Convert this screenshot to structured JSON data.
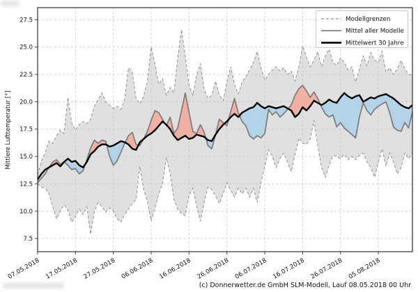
{
  "footer": {
    "copyright": "(c) Donnerwetter.de GmbH SLM-Modell, Lauf 08.05.2018 00 Uhr"
  },
  "chart_data": {
    "type": "line",
    "title": "",
    "xlabel": "",
    "ylabel": "Mittlere Lufttemperatur [°]",
    "grid": true,
    "xlim_days": [
      0,
      99
    ],
    "ylim": [
      6.3,
      28.6
    ],
    "y_ticks": [
      7.5,
      10.0,
      12.5,
      15.0,
      17.5,
      20.0,
      22.5,
      25.0,
      27.5
    ],
    "y_tick_labels": [
      "7.5",
      "10.0",
      "12.5",
      "15.0",
      "17.5",
      "20.0",
      "22.5",
      "25.0",
      "27.5"
    ],
    "x_tick_days": [
      0,
      10,
      20,
      30,
      40,
      50,
      60,
      70,
      80,
      90
    ],
    "x_tick_labels": [
      "07.05.2018",
      "17.05.2018",
      "27.05.2018",
      "06.06.2018",
      "16.06.2018",
      "26.06.2018",
      "06.07.2018",
      "16.07.2018",
      "26.07.2018",
      "05.08.2018"
    ],
    "x_start_day": 0,
    "x_day_step": 1,
    "colors": {
      "band": "#c4c4c4",
      "bound_line": "#8e8e8e",
      "model_line": "#7a7a7a",
      "climate_line": "#000000",
      "warmer_fill": "#f1b0a4",
      "colder_fill": "#b3d3e8"
    },
    "legend": {
      "position": "top-right",
      "entries": [
        {
          "label": "Modellgrenzen",
          "style": "dashed"
        },
        {
          "label": "Mittel aller Modelle",
          "style": "solid"
        },
        {
          "label": "Mittelwert 30 Jahre",
          "style": "bold"
        }
      ]
    },
    "series": [
      {
        "role": "upper_bound",
        "name": "Modellgrenzen (oberes Modell)",
        "style": "dashed",
        "values": [
          13.3,
          14.6,
          15.3,
          16.4,
          16.2,
          16.9,
          17.4,
          17.1,
          20.4,
          18.1,
          17.4,
          17.9,
          18.2,
          18.0,
          18.4,
          19.6,
          20.2,
          20.8,
          20.0,
          19.7,
          19.4,
          19.6,
          19.3,
          20.2,
          23.1,
          22.7,
          20.3,
          19.8,
          20.5,
          21.9,
          25.0,
          23.4,
          21.6,
          22.1,
          20.6,
          21.3,
          20.8,
          24.0,
          26.6,
          24.2,
          21.5,
          20.6,
          22.4,
          23.5,
          21.1,
          20.3,
          20.6,
          21.9,
          20.6,
          20.1,
          21.8,
          23.2,
          21.6,
          20.7,
          21.8,
          22.3,
          22.9,
          23.6,
          24.6,
          23.1,
          22.0,
          22.5,
          22.9,
          23.2,
          22.8,
          23.1,
          22.5,
          22.8,
          21.9,
          23.2,
          25.1,
          24.1,
          23.2,
          23.8,
          24.6,
          23.2,
          24.2,
          24.8,
          23.6,
          23.3,
          24.0,
          23.6,
          22.9,
          23.2,
          21.8,
          23.0,
          24.2,
          23.3,
          24.5,
          23.8,
          23.6,
          24.6,
          22.7,
          23.1,
          22.5,
          23.0,
          23.8,
          23.0,
          22.5,
          22.4
        ]
      },
      {
        "role": "lower_bound",
        "name": "Modellgrenzen (unteres Modell)",
        "style": "dashed",
        "values": [
          12.5,
          12.2,
          12.1,
          11.6,
          10.4,
          9.3,
          10.0,
          10.6,
          10.1,
          9.0,
          9.5,
          10.2,
          9.7,
          10.4,
          7.9,
          10.0,
          10.8,
          10.4,
          9.9,
          10.3,
          10.0,
          9.3,
          9.0,
          9.7,
          10.2,
          10.7,
          11.1,
          14.1,
          12.0,
          10.9,
          9.1,
          10.3,
          11.6,
          12.5,
          14.9,
          13.4,
          11.1,
          10.2,
          9.8,
          9.6,
          11.5,
          12.1,
          10.5,
          9.1,
          10.8,
          12.2,
          12.0,
          11.4,
          10.7,
          11.6,
          12.6,
          11.9,
          11.3,
          12.1,
          11.6,
          12.1,
          11.3,
          12.1,
          10.8,
          12.6,
          14.1,
          15.6,
          15.0,
          14.0,
          14.8,
          15.3,
          14.5,
          13.6,
          15.2,
          16.7,
          16.2,
          16.1,
          16.6,
          18.3,
          16.0,
          14.0,
          13.1,
          14.2,
          15.1,
          15.0,
          14.8,
          15.2,
          14.7,
          15.0,
          14.7,
          15.1,
          15.3,
          14.5,
          14.0,
          13.1,
          14.5,
          15.7,
          14.1,
          15.3,
          14.5,
          13.4,
          14.0,
          15.3,
          14.8,
          15.3
        ]
      },
      {
        "role": "model_mean",
        "name": "Mittel aller Modelle",
        "style": "solid",
        "values": [
          12.6,
          13.0,
          13.4,
          14.0,
          14.5,
          14.7,
          14.3,
          14.5,
          14.2,
          13.8,
          13.9,
          13.4,
          13.7,
          14.7,
          15.8,
          16.5,
          16.2,
          16.5,
          16.4,
          15.0,
          14.2,
          14.6,
          15.4,
          16.2,
          16.9,
          17.2,
          16.1,
          16.0,
          16.6,
          17.3,
          18.3,
          19.2,
          19.0,
          18.4,
          17.8,
          18.6,
          17.1,
          17.6,
          19.2,
          20.8,
          19.0,
          17.3,
          17.1,
          17.9,
          17.2,
          16.0,
          15.7,
          17.0,
          18.4,
          18.1,
          17.8,
          19.1,
          20.3,
          19.0,
          18.2,
          17.8,
          16.9,
          16.6,
          16.9,
          16.7,
          17.1,
          19.3,
          18.8,
          19.1,
          18.6,
          18.9,
          19.3,
          19.7,
          20.6,
          21.2,
          21.5,
          21.0,
          20.4,
          20.9,
          20.3,
          19.5,
          18.9,
          18.6,
          18.8,
          17.7,
          18.1,
          17.6,
          17.3,
          17.0,
          16.7,
          18.6,
          19.9,
          19.2,
          18.8,
          19.3,
          19.6,
          19.8,
          20.0,
          19.0,
          17.7,
          17.4,
          17.3,
          18.1,
          17.6,
          19.1
        ]
      },
      {
        "role": "climate_mean",
        "name": "Mittelwert 30 Jahre",
        "style": "bold",
        "values": [
          12.9,
          13.4,
          13.8,
          14.0,
          14.2,
          14.4,
          14.1,
          14.5,
          14.8,
          14.5,
          14.6,
          14.2,
          14.0,
          14.5,
          15.2,
          15.5,
          15.9,
          16.1,
          16.1,
          15.9,
          16.0,
          16.2,
          16.4,
          16.3,
          16.1,
          15.7,
          15.6,
          16.3,
          16.6,
          16.9,
          17.1,
          17.4,
          17.8,
          18.2,
          17.9,
          17.5,
          16.9,
          16.5,
          16.7,
          16.9,
          16.6,
          16.7,
          17.0,
          16.9,
          16.8,
          16.5,
          16.4,
          17.0,
          17.5,
          17.9,
          18.2,
          18.6,
          18.9,
          18.6,
          19.0,
          19.2,
          19.4,
          19.5,
          19.9,
          19.6,
          19.4,
          19.6,
          19.5,
          19.4,
          19.5,
          19.6,
          19.4,
          19.2,
          18.6,
          18.9,
          19.5,
          19.2,
          19.6,
          20.1,
          19.9,
          19.7,
          19.9,
          20.2,
          20.0,
          19.9,
          20.4,
          20.8,
          20.5,
          20.3,
          20.5,
          20.6,
          20.0,
          20.2,
          20.4,
          20.3,
          20.5,
          20.6,
          20.7,
          20.5,
          20.3,
          20.0,
          19.7,
          19.5,
          19.4,
          19.7
        ]
      }
    ]
  }
}
